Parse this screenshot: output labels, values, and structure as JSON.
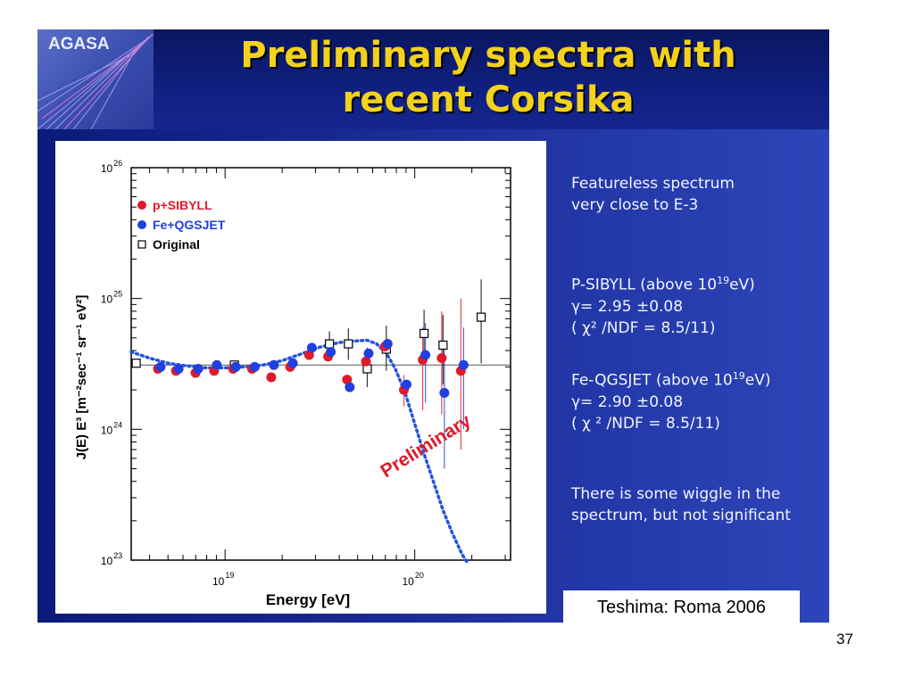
{
  "header": {
    "logo": "AGASA",
    "title_line1": "Preliminary spectra with",
    "title_line2": "recent Corsika"
  },
  "notes": {
    "p1_line1": "Featureless spectrum",
    "p1_line2": "very close to E-3",
    "p2_line1_a": "P-SIBYLL (above 10",
    "p2_line1_sup": "19",
    "p2_line1_b": "eV)",
    "p2_line2": "γ= 2.95 ±0.08",
    "p2_line3": "( χ² /NDF = 8.5/11)",
    "p3_line1_a": "Fe-QGSJET (above 10",
    "p3_line1_sup": "19",
    "p3_line1_b": "eV)",
    "p3_line2": "γ= 2.90 ±0.08",
    "p3_line3": "( χ ² /NDF = 8.5/11)",
    "p4_line1": "There is some wiggle in the",
    "p4_line2": "spectrum, but not significant"
  },
  "caption": "Teshima: Roma 2006",
  "page_number": "37",
  "colors": {
    "title": "#f2d21c",
    "p_sibyll": "#e01a2a",
    "fe_qgsjet": "#2040e0",
    "original": "#000000",
    "curve": "#2255dd",
    "annotation": "#e01a2a"
  },
  "chart_data": {
    "type": "scatter",
    "xlabel": "Energy [eV]",
    "ylabel": "J(E) E³ [m⁻²sec⁻¹ sr⁻¹ eV²]",
    "xscale": "log",
    "yscale": "log",
    "xlim": [
      3.2e+18,
      3.2e+20
    ],
    "ylim": [
      1e+23,
      1e+26
    ],
    "x_tick_labels": [
      {
        "value": 1e+19,
        "base": "10",
        "exp": "19"
      },
      {
        "value": 1e+20,
        "base": "10",
        "exp": "20"
      }
    ],
    "y_tick_labels": [
      {
        "value": 1e+23,
        "base": "10",
        "exp": "23"
      },
      {
        "value": 1e+24,
        "base": "10",
        "exp": "24"
      },
      {
        "value": 1e+25,
        "base": "10",
        "exp": "25"
      },
      {
        "value": 1e+26,
        "base": "10",
        "exp": "26"
      }
    ],
    "reference_line_y": 3.1e+24,
    "annotation": "Preliminary",
    "legend_position": "top-left",
    "series": [
      {
        "name": "p+SIBYLL",
        "marker": "filled-circle",
        "color": "#e01a2a",
        "points": [
          {
            "x": 4.5e+18,
            "y": 2.9e+24
          },
          {
            "x": 5.6e+18,
            "y": 2.8e+24
          },
          {
            "x": 7.1e+18,
            "y": 2.7e+24
          },
          {
            "x": 8.9e+18,
            "y": 2.8e+24
          },
          {
            "x": 1.12e+19,
            "y": 2.9e+24
          },
          {
            "x": 1.41e+19,
            "y": 2.9e+24
          },
          {
            "x": 1.78e+19,
            "y": 2.5e+24
          },
          {
            "x": 2.24e+19,
            "y": 3e+24
          },
          {
            "x": 2.82e+19,
            "y": 3.7e+24
          },
          {
            "x": 3.55e+19,
            "y": 3.6e+24
          },
          {
            "x": 4.47e+19,
            "y": 2.4e+24
          },
          {
            "x": 5.62e+19,
            "y": 3.3e+24
          },
          {
            "x": 7.08e+19,
            "y": 4.3e+24
          },
          {
            "x": 8.91e+19,
            "y": 2e+24,
            "err": [
              1.5e+24,
              2.6e+24
            ]
          },
          {
            "x": 1.12e+20,
            "y": 3.4e+24,
            "err": [
              1.4e+24,
              6e+24
            ]
          },
          {
            "x": 1.41e+20,
            "y": 3.5e+24,
            "err": [
              1.3e+24,
              8e+24
            ]
          },
          {
            "x": 1.78e+20,
            "y": 2.8e+24,
            "err": [
              7e+23,
              1e+25
            ]
          }
        ]
      },
      {
        "name": "Fe+QGSJET",
        "marker": "filled-circle",
        "color": "#2040e0",
        "points": [
          {
            "x": 4.5e+18,
            "y": 3e+24
          },
          {
            "x": 5.6e+18,
            "y": 2.9e+24
          },
          {
            "x": 7.1e+18,
            "y": 2.9e+24
          },
          {
            "x": 8.9e+18,
            "y": 3.1e+24
          },
          {
            "x": 1.12e+19,
            "y": 3e+24
          },
          {
            "x": 1.41e+19,
            "y": 3e+24
          },
          {
            "x": 1.78e+19,
            "y": 3.1e+24
          },
          {
            "x": 2.24e+19,
            "y": 3.2e+24
          },
          {
            "x": 2.82e+19,
            "y": 4.2e+24
          },
          {
            "x": 3.55e+19,
            "y": 3.9e+24
          },
          {
            "x": 4.47e+19,
            "y": 2.1e+24
          },
          {
            "x": 5.62e+19,
            "y": 3.8e+24
          },
          {
            "x": 7.08e+19,
            "y": 4.5e+24
          },
          {
            "x": 8.91e+19,
            "y": 2.2e+24
          },
          {
            "x": 1.12e+20,
            "y": 3.7e+24,
            "err": [
              1.6e+24,
              6.5e+24
            ]
          },
          {
            "x": 1.41e+20,
            "y": 1.9e+24,
            "err": [
              5e+23,
              4.5e+24
            ]
          },
          {
            "x": 1.78e+20,
            "y": 3.1e+24,
            "err": [
              1e+24,
              6e+24
            ]
          }
        ]
      },
      {
        "name": "Original",
        "marker": "open-square",
        "color": "#000000",
        "points": [
          {
            "x": 3.4e+18,
            "y": 3.2e+24
          },
          {
            "x": 1.12e+19,
            "y": 3.1e+24
          },
          {
            "x": 3.55e+19,
            "y": 4.5e+24,
            "err": [
              3.6e+24,
              5.6e+24
            ]
          },
          {
            "x": 4.47e+19,
            "y": 4.5e+24,
            "err": [
              3.4e+24,
              5.9e+24
            ]
          },
          {
            "x": 5.62e+19,
            "y": 2.9e+24,
            "err": [
              2.1e+24,
              4.2e+24
            ]
          },
          {
            "x": 7.08e+19,
            "y": 4.1e+24,
            "err": [
              2.8e+24,
              6.2e+24
            ]
          },
          {
            "x": 1.12e+20,
            "y": 5.4e+24,
            "err": [
              3.4e+24,
              8.2e+24
            ]
          },
          {
            "x": 1.41e+20,
            "y": 4.4e+24,
            "err": [
              2.2e+24,
              7.5e+24
            ]
          },
          {
            "x": 2.24e+20,
            "y": 7.2e+24,
            "err": [
              3.2e+24,
              1.4e+25
            ]
          }
        ]
      }
    ],
    "curve": {
      "name": "Preliminary",
      "style": "dotted",
      "color": "#2255dd",
      "points": [
        {
          "x": 3.2e+18,
          "y": 3.9e+24
        },
        {
          "x": 4e+18,
          "y": 3.5e+24
        },
        {
          "x": 5e+18,
          "y": 3.2e+24
        },
        {
          "x": 6.3e+18,
          "y": 3.05e+24
        },
        {
          "x": 7.9e+18,
          "y": 2.95e+24
        },
        {
          "x": 1e+19,
          "y": 2.95e+24
        },
        {
          "x": 1.26e+19,
          "y": 3e+24
        },
        {
          "x": 1.58e+19,
          "y": 3.1e+24
        },
        {
          "x": 2e+19,
          "y": 3.35e+24
        },
        {
          "x": 2.5e+19,
          "y": 3.75e+24
        },
        {
          "x": 3.16e+19,
          "y": 4.25e+24
        },
        {
          "x": 3.98e+19,
          "y": 4.6e+24
        },
        {
          "x": 5e+19,
          "y": 4.75e+24
        },
        {
          "x": 5.6e+19,
          "y": 4.8e+24
        },
        {
          "x": 6.3e+19,
          "y": 4.5e+24
        },
        {
          "x": 7.1e+19,
          "y": 3.8e+24
        },
        {
          "x": 7.9e+19,
          "y": 2.9e+24
        },
        {
          "x": 8.9e+19,
          "y": 1.9e+24
        },
        {
          "x": 1e+20,
          "y": 1.1e+24
        },
        {
          "x": 1.12e+20,
          "y": 6.5e+23
        },
        {
          "x": 1.26e+20,
          "y": 3.9e+23
        },
        {
          "x": 1.41e+20,
          "y": 2.4e+23
        },
        {
          "x": 1.58e+20,
          "y": 1.6e+23
        },
        {
          "x": 1.78e+20,
          "y": 1.1e+23
        },
        {
          "x": 1.9e+20,
          "y": 9.5e+22
        }
      ]
    }
  }
}
